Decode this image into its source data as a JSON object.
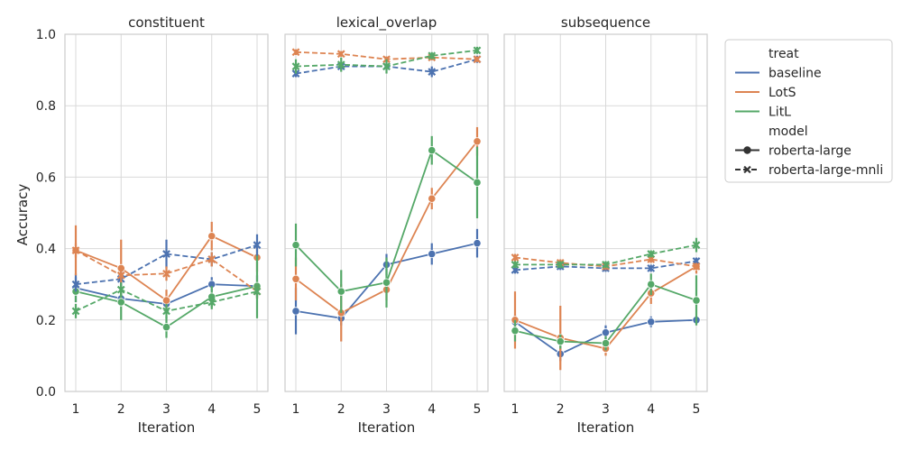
{
  "chart_data": {
    "type": "line",
    "ylabel": "Accuracy",
    "xlabel": "Iteration",
    "ylim": [
      0,
      1
    ],
    "y_ticks": [
      "0.0",
      "0.2",
      "0.4",
      "0.6",
      "0.8",
      "1.0"
    ],
    "x": [
      1,
      2,
      3,
      4,
      5
    ],
    "x_ticks": [
      "1",
      "2",
      "3",
      "4",
      "5"
    ],
    "grid": true,
    "legend_position": "right",
    "legend": {
      "hue_title": "treat",
      "style_title": "model",
      "treats": [
        {
          "name": "baseline",
          "color": "#4c72b0"
        },
        {
          "name": "LotS",
          "color": "#dd8452"
        },
        {
          "name": "LitL",
          "color": "#55a868"
        }
      ],
      "models": [
        {
          "name": "roberta-large",
          "marker": "circle",
          "dash": "solid"
        },
        {
          "name": "roberta-large-mnli",
          "marker": "x",
          "dash": "dashed"
        }
      ]
    },
    "panels": [
      {
        "title": "constituent",
        "series": [
          {
            "treat": "baseline",
            "model": "roberta-large",
            "values": [
              0.29,
              0.26,
              0.245,
              0.3,
              0.295
            ],
            "err": [
              0.04,
              0.02,
              0.02,
              0.02,
              0.03
            ]
          },
          {
            "treat": "LotS",
            "model": "roberta-large",
            "values": [
              0.395,
              0.345,
              0.255,
              0.435,
              0.375
            ],
            "err": [
              0.07,
              0.08,
              0.03,
              0.04,
              0.04
            ]
          },
          {
            "treat": "LitL",
            "model": "roberta-large",
            "values": [
              0.28,
              0.25,
              0.18,
              0.265,
              0.295
            ],
            "err": [
              0.03,
              0.05,
              0.03,
              0.03,
              0.09
            ]
          },
          {
            "treat": "baseline",
            "model": "roberta-large-mnli",
            "values": [
              0.3,
              0.315,
              0.385,
              0.37,
              0.41
            ],
            "err": [
              0.02,
              0.02,
              0.04,
              0.02,
              0.03
            ]
          },
          {
            "treat": "LotS",
            "model": "roberta-large-mnli",
            "values": [
              0.395,
              0.325,
              0.33,
              0.37,
              0.28
            ],
            "err": [
              0.02,
              0.02,
              0.02,
              0.02,
              0.02
            ]
          },
          {
            "treat": "LitL",
            "model": "roberta-large-mnli",
            "values": [
              0.225,
              0.285,
              0.225,
              0.25,
              0.28
            ],
            "err": [
              0.02,
              0.02,
              0.02,
              0.02,
              0.02
            ]
          }
        ]
      },
      {
        "title": "lexical_overlap",
        "series": [
          {
            "treat": "baseline",
            "model": "roberta-large",
            "values": [
              0.225,
              0.205,
              0.355,
              0.385,
              0.415
            ],
            "err": [
              0.065,
              0.02,
              0.03,
              0.03,
              0.04
            ]
          },
          {
            "treat": "LotS",
            "model": "roberta-large",
            "values": [
              0.315,
              0.22,
              0.285,
              0.54,
              0.7
            ],
            "err": [
              0.06,
              0.08,
              0.03,
              0.03,
              0.04
            ]
          },
          {
            "treat": "LitL",
            "model": "roberta-large",
            "values": [
              0.41,
              0.28,
              0.305,
              0.675,
              0.585
            ],
            "err": [
              0.06,
              0.06,
              0.07,
              0.04,
              0.1
            ]
          },
          {
            "treat": "baseline",
            "model": "roberta-large-mnli",
            "values": [
              0.89,
              0.91,
              0.91,
              0.895,
              0.93
            ],
            "err": [
              0.01,
              0.01,
              0.01,
              0.015,
              0.01
            ]
          },
          {
            "treat": "LotS",
            "model": "roberta-large-mnli",
            "values": [
              0.95,
              0.945,
              0.93,
              0.935,
              0.93
            ],
            "err": [
              0.008,
              0.008,
              0.008,
              0.008,
              0.008
            ]
          },
          {
            "treat": "LitL",
            "model": "roberta-large-mnli",
            "values": [
              0.91,
              0.915,
              0.91,
              0.94,
              0.955
            ],
            "err": [
              0.02,
              0.02,
              0.02,
              0.01,
              0.01
            ]
          }
        ]
      },
      {
        "title": "subsequence",
        "series": [
          {
            "treat": "baseline",
            "model": "roberta-large",
            "values": [
              0.195,
              0.105,
              0.165,
              0.195,
              0.2
            ],
            "err": [
              0.02,
              0.02,
              0.02,
              0.015,
              0.01
            ]
          },
          {
            "treat": "LotS",
            "model": "roberta-large",
            "values": [
              0.2,
              0.15,
              0.12,
              0.275,
              0.35
            ],
            "err": [
              0.08,
              0.09,
              0.02,
              0.03,
              0.02
            ]
          },
          {
            "treat": "LitL",
            "model": "roberta-large",
            "values": [
              0.17,
              0.14,
              0.135,
              0.3,
              0.255
            ],
            "err": [
              0.03,
              0.02,
              0.02,
              0.03,
              0.07
            ]
          },
          {
            "treat": "baseline",
            "model": "roberta-large-mnli",
            "values": [
              0.34,
              0.35,
              0.345,
              0.345,
              0.365
            ],
            "err": [
              0.01,
              0.01,
              0.01,
              0.01,
              0.01
            ]
          },
          {
            "treat": "LotS",
            "model": "roberta-large-mnli",
            "values": [
              0.375,
              0.36,
              0.35,
              0.37,
              0.35
            ],
            "err": [
              0.01,
              0.01,
              0.01,
              0.01,
              0.01
            ]
          },
          {
            "treat": "LitL",
            "model": "roberta-large-mnli",
            "values": [
              0.355,
              0.355,
              0.355,
              0.385,
              0.41
            ],
            "err": [
              0.01,
              0.01,
              0.01,
              0.01,
              0.02
            ]
          }
        ]
      }
    ]
  }
}
